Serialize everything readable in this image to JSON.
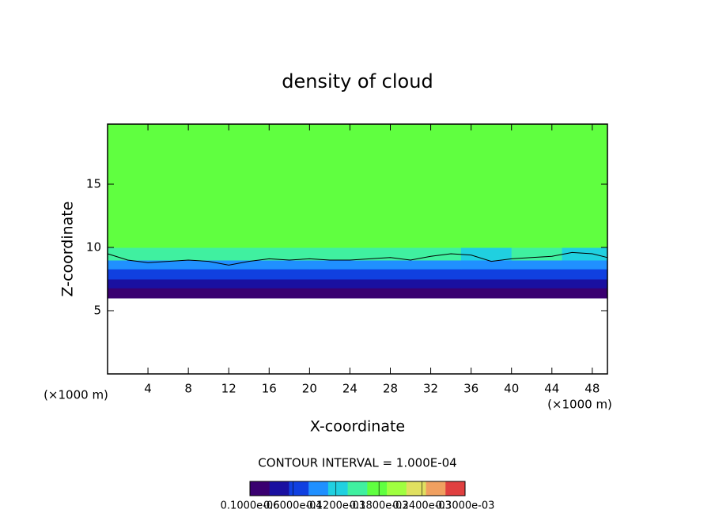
{
  "chart_data": {
    "type": "heatmap",
    "title": "density of cloud",
    "xlabel": "X-coordinate",
    "ylabel": "Z-coordinate",
    "x_unit": "(×1000 m)",
    "y_unit": "(×1000 m)",
    "annotation": "CONTOUR INTERVAL = 1.000E-04",
    "xlim": [
      0,
      49.5
    ],
    "ylim": [
      0,
      19.75
    ],
    "xticks": [
      4,
      8,
      12,
      16,
      20,
      24,
      28,
      32,
      36,
      40,
      44,
      48
    ],
    "yticks": [
      5,
      10,
      15
    ],
    "x_edges": [
      0,
      5,
      10,
      15,
      20,
      25,
      30,
      35,
      40,
      45,
      49.5
    ],
    "y_edges": [
      6.0,
      6.8,
      7.5,
      8.3,
      9.0,
      10.0,
      19.75
    ],
    "values": [
      [
        1e-05,
        1e-05,
        1e-05,
        1e-05,
        1e-05,
        1e-05,
        1e-05,
        1e-05,
        1e-05,
        1e-05
      ],
      [
        3e-05,
        3e-05,
        3e-05,
        3e-05,
        3e-05,
        3e-05,
        3e-05,
        3e-05,
        3e-05,
        3e-05
      ],
      [
        5e-05,
        5e-05,
        5e-05,
        5e-05,
        5e-05,
        6e-05,
        6e-05,
        5e-05,
        5e-05,
        5e-05
      ],
      [
        8e-05,
        9e-05,
        9e-05,
        8e-05,
        9e-05,
        9e-05,
        8e-05,
        8e-05,
        9e-05,
        8e-05
      ],
      [
        0.00014,
        0.00015,
        0.00015,
        0.00015,
        0.00015,
        0.00015,
        0.00014,
        0.00013,
        0.00014,
        0.00013
      ],
      [
        0.00018,
        0.00018,
        0.00018,
        0.00018,
        0.00018,
        0.00018,
        0.00018,
        0.00018,
        0.00018,
        0.00018
      ]
    ],
    "contour_line": {
      "color": "#000000",
      "x": [
        0,
        2,
        4,
        6,
        8,
        10,
        12,
        14,
        16,
        18,
        20,
        22,
        24,
        26,
        28,
        30,
        32,
        34,
        36,
        38,
        40,
        42,
        44,
        46,
        48,
        49.5
      ],
      "y": [
        9.5,
        9.0,
        8.8,
        8.9,
        9.0,
        8.9,
        8.6,
        8.9,
        9.1,
        9.0,
        9.1,
        9.0,
        9.0,
        9.1,
        9.2,
        9.0,
        9.3,
        9.5,
        9.4,
        8.9,
        9.1,
        9.2,
        9.3,
        9.6,
        9.5,
        9.2
      ]
    },
    "colorbar": {
      "clim": [
        1e-07,
        0.0003
      ],
      "colors": [
        "#3a0070",
        "#1a10a0",
        "#1040e0",
        "#2090ff",
        "#20d0e0",
        "#40f0a0",
        "#60ff40",
        "#a0ff40",
        "#e0e060",
        "#f0a060",
        "#e04040"
      ],
      "ticks": [
        {
          "value": 1e-07,
          "label": "0.1000e-06"
        },
        {
          "value": 6e-05,
          "label": "0.6000e-04"
        },
        {
          "value": 0.00012,
          "label": "0.1200e-03"
        },
        {
          "value": 0.00018,
          "label": "0.1800e-03"
        },
        {
          "value": 0.00024,
          "label": "0.2400e-03"
        },
        {
          "value": 0.0003,
          "label": "0.3000e-03"
        }
      ]
    }
  }
}
